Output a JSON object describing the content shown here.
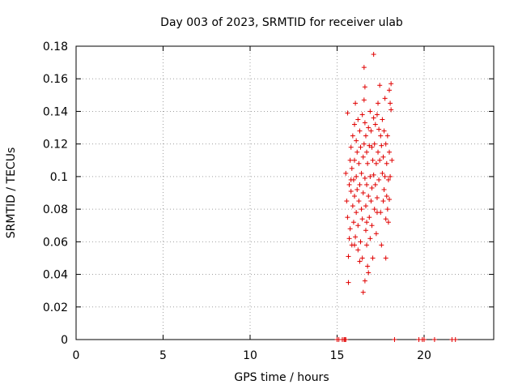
{
  "chart_data": {
    "type": "scatter",
    "title": "Day 003 of 2023, SRMTID for receiver ulab",
    "xlabel": "GPS time / hours",
    "ylabel": "SRMTID / TECUs",
    "xlim": [
      0,
      24
    ],
    "ylim": [
      0,
      0.18
    ],
    "x_ticks": [
      0,
      5,
      10,
      15,
      20
    ],
    "y_ticks": [
      0,
      0.02,
      0.04,
      0.06,
      0.08,
      0.1,
      0.12,
      0.14,
      0.16,
      0.18
    ],
    "x_tick_labels": [
      "0",
      "5",
      "10",
      "15",
      "20"
    ],
    "y_tick_labels": [
      "0",
      "0.02",
      "0.04",
      "0.06",
      "0.08",
      "0.1",
      "0.12",
      "0.14",
      "0.16",
      "0.18"
    ],
    "grid": true,
    "marker": "+",
    "color": "#e00000",
    "series": [
      {
        "name": "SRMTID",
        "points": [
          [
            15.0,
            0
          ],
          [
            15.1,
            0
          ],
          [
            15.3,
            0
          ],
          [
            15.4,
            0
          ],
          [
            15.45,
            0
          ],
          [
            15.5,
            0
          ],
          [
            18.3,
            0
          ],
          [
            19.7,
            0
          ],
          [
            19.9,
            0
          ],
          [
            20.0,
            0
          ],
          [
            20.6,
            0
          ],
          [
            21.6,
            0
          ],
          [
            21.8,
            0
          ],
          [
            15.5,
            0.102
          ],
          [
            15.55,
            0.085
          ],
          [
            15.6,
            0.139
          ],
          [
            15.6,
            0.075
          ],
          [
            15.65,
            0.035
          ],
          [
            15.65,
            0.051
          ],
          [
            15.7,
            0.062
          ],
          [
            15.7,
            0.095
          ],
          [
            15.75,
            0.11
          ],
          [
            15.75,
            0.068
          ],
          [
            15.8,
            0.118
          ],
          [
            15.8,
            0.091
          ],
          [
            15.85,
            0.058
          ],
          [
            15.85,
            0.105
          ],
          [
            15.9,
            0.082
          ],
          [
            15.9,
            0.125
          ],
          [
            15.95,
            0.098
          ],
          [
            15.95,
            0.072
          ],
          [
            16.0,
            0.132
          ],
          [
            16.0,
            0.11
          ],
          [
            16.0,
            0.088
          ],
          [
            16.05,
            0.145
          ],
          [
            16.05,
            0.063
          ],
          [
            16.1,
            0.122
          ],
          [
            16.1,
            0.1
          ],
          [
            16.1,
            0.078
          ],
          [
            16.15,
            0.115
          ],
          [
            16.15,
            0.092
          ],
          [
            16.2,
            0.135
          ],
          [
            16.2,
            0.07
          ],
          [
            16.2,
            0.055
          ],
          [
            16.25,
            0.108
          ],
          [
            16.25,
            0.085
          ],
          [
            16.3,
            0.128
          ],
          [
            16.3,
            0.095
          ],
          [
            16.35,
            0.06
          ],
          [
            16.35,
            0.118
          ],
          [
            16.4,
            0.08
          ],
          [
            16.4,
            0.102
          ],
          [
            16.45,
            0.138
          ],
          [
            16.45,
            0.074
          ],
          [
            16.45,
            0.05
          ],
          [
            16.5,
            0.112
          ],
          [
            16.5,
            0.09
          ],
          [
            16.5,
            0.029
          ],
          [
            16.55,
            0.167
          ],
          [
            16.55,
            0.147
          ],
          [
            16.55,
            0.12
          ],
          [
            16.6,
            0.155
          ],
          [
            16.6,
            0.133
          ],
          [
            16.6,
            0.099
          ],
          [
            16.6,
            0.036
          ],
          [
            16.65,
            0.125
          ],
          [
            16.65,
            0.082
          ],
          [
            16.65,
            0.067
          ],
          [
            16.7,
            0.115
          ],
          [
            16.7,
            0.095
          ],
          [
            16.7,
            0.058
          ],
          [
            16.75,
            0.108
          ],
          [
            16.75,
            0.045
          ],
          [
            16.8,
            0.13
          ],
          [
            16.8,
            0.088
          ],
          [
            16.8,
            0.041
          ],
          [
            16.85,
            0.119
          ],
          [
            16.85,
            0.075
          ],
          [
            16.9,
            0.14
          ],
          [
            16.9,
            0.1
          ],
          [
            16.9,
            0.062
          ],
          [
            16.95,
            0.128
          ],
          [
            16.95,
            0.085
          ],
          [
            17.0,
            0.118
          ],
          [
            17.0,
            0.093
          ],
          [
            17.0,
            0.07
          ],
          [
            17.05,
            0.11
          ],
          [
            17.05,
            0.05
          ],
          [
            17.1,
            0.175
          ],
          [
            17.1,
            0.136
          ],
          [
            17.1,
            0.101
          ],
          [
            17.15,
            0.12
          ],
          [
            17.15,
            0.08
          ],
          [
            17.2,
            0.132
          ],
          [
            17.2,
            0.095
          ],
          [
            17.25,
            0.108
          ],
          [
            17.25,
            0.065
          ],
          [
            17.3,
            0.138
          ],
          [
            17.3,
            0.087
          ],
          [
            17.35,
            0.145
          ],
          [
            17.35,
            0.115
          ],
          [
            17.4,
            0.129
          ],
          [
            17.4,
            0.098
          ],
          [
            17.45,
            0.156
          ],
          [
            17.45,
            0.11
          ],
          [
            17.5,
            0.125
          ],
          [
            17.5,
            0.078
          ],
          [
            17.55,
            0.119
          ],
          [
            17.55,
            0.058
          ],
          [
            17.6,
            0.135
          ],
          [
            17.6,
            0.102
          ],
          [
            17.65,
            0.112
          ],
          [
            17.65,
            0.085
          ],
          [
            17.7,
            0.128
          ],
          [
            17.7,
            0.092
          ],
          [
            17.75,
            0.148
          ],
          [
            17.75,
            0.1
          ],
          [
            17.8,
            0.12
          ],
          [
            17.8,
            0.074
          ],
          [
            17.85,
            0.108
          ],
          [
            17.85,
            0.088
          ],
          [
            17.9,
            0.125
          ],
          [
            17.9,
            0.08
          ],
          [
            17.95,
            0.098
          ],
          [
            17.95,
            0.072
          ],
          [
            18.0,
            0.153
          ],
          [
            18.0,
            0.115
          ],
          [
            18.0,
            0.086
          ],
          [
            18.05,
            0.145
          ],
          [
            18.05,
            0.1
          ],
          [
            18.1,
            0.157
          ],
          [
            18.1,
            0.141
          ],
          [
            18.15,
            0.11
          ],
          [
            16.0,
            0.058
          ],
          [
            16.3,
            0.048
          ],
          [
            17.8,
            0.05
          ],
          [
            17.3,
            0.078
          ],
          [
            16.7,
            0.072
          ],
          [
            15.8,
            0.098
          ]
        ]
      }
    ]
  }
}
